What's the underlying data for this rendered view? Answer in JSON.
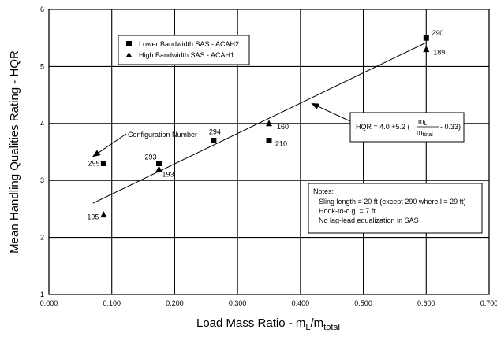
{
  "chart_data": {
    "type": "scatter",
    "xlabel": "Load Mass Ratio - m",
    "xlabel_sub1": "L",
    "xlabel_mid": "/m",
    "xlabel_sub2": "total",
    "ylabel": "Mean Handling Qualities Rating - HQR",
    "xlim": [
      0,
      0.7
    ],
    "ylim": [
      1,
      6
    ],
    "x_ticks": [
      "0.000",
      "0.100",
      "0.200",
      "0.300",
      "0.400",
      "0.500",
      "0.600",
      "0.700"
    ],
    "y_ticks": [
      "1",
      "2",
      "3",
      "4",
      "5",
      "6"
    ],
    "x_tick_values": [
      0,
      0.1,
      0.2,
      0.3,
      0.4,
      0.5,
      0.6,
      0.7
    ],
    "y_tick_values": [
      1,
      2,
      3,
      4,
      5,
      6
    ],
    "grid": true,
    "legend_position": "top-left",
    "series": [
      {
        "name": "Lower Bandwidth SAS - ACAH2",
        "marker": "square",
        "points": [
          {
            "x": 0.087,
            "y": 3.3,
            "label": "295"
          },
          {
            "x": 0.175,
            "y": 3.3,
            "label": "293"
          },
          {
            "x": 0.262,
            "y": 3.7,
            "label": "294"
          },
          {
            "x": 0.35,
            "y": 3.7,
            "label": "210"
          },
          {
            "x": 0.6,
            "y": 5.5,
            "label": "290"
          }
        ]
      },
      {
        "name": "High Bandwidth SAS - ACAH1",
        "marker": "triangle",
        "points": [
          {
            "x": 0.087,
            "y": 2.4,
            "label": "195"
          },
          {
            "x": 0.175,
            "y": 3.2,
            "label": "193"
          },
          {
            "x": 0.35,
            "y": 4.0,
            "label": "160"
          },
          {
            "x": 0.6,
            "y": 5.3,
            "label": "189"
          }
        ]
      }
    ],
    "fit_line": {
      "x": [
        0.07,
        0.6
      ],
      "y": [
        2.6,
        5.42
      ],
      "equation_prefix": "HQR = 4.0 +5.2  (",
      "eq_num": "m",
      "eq_num_sub": "L",
      "eq_den": "m",
      "eq_den_sub": "total",
      "eq_suffix": "- 0.33)",
      "callout_target": {
        "x": 0.418,
        "y": 4.35
      }
    },
    "annotations": {
      "configuration_label": "Configuration Number",
      "configuration_target": {
        "x": 0.07,
        "y": 3.42
      }
    },
    "notes": {
      "title": "Notes:",
      "lines": [
        "Sling length = 20 ft  (except 290 where l = 29 ft)",
        "Hook-to-c.g. = 7 ft",
        "No lag-lead equalization in SAS"
      ]
    }
  }
}
